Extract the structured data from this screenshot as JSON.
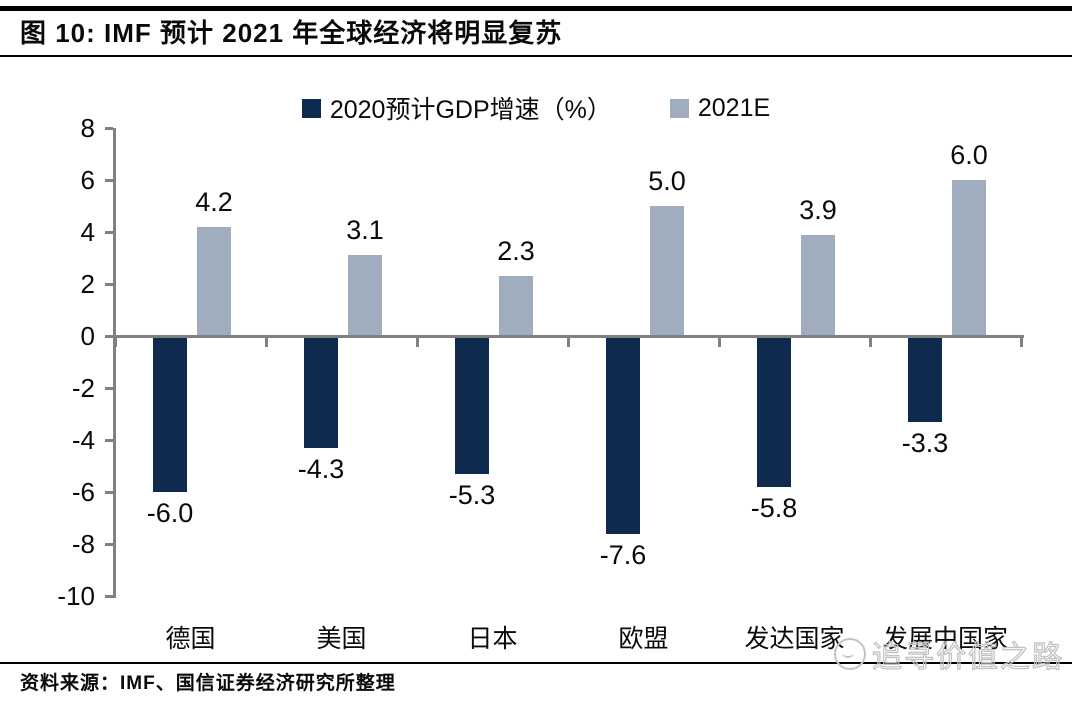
{
  "header": {
    "title": "图 10:  IMF 预计 2021 年全球经济将明显复苏"
  },
  "chart_data": {
    "type": "bar",
    "title": "IMF 预计 2021 年全球经济将明显复苏",
    "categories": [
      "德国",
      "美国",
      "日本",
      "欧盟",
      "发达国家",
      "发展中国家"
    ],
    "series": [
      {
        "name": "2020预计GDP增速（%）",
        "color": "#0e2a4e",
        "values": [
          -6.0,
          -4.3,
          -5.3,
          -7.6,
          -5.8,
          -3.3
        ]
      },
      {
        "name": "2021E",
        "color": "#9fadbe",
        "values": [
          4.2,
          3.1,
          2.3,
          5.0,
          3.9,
          6.0
        ]
      }
    ],
    "y_axis": {
      "min": -10,
      "max": 8,
      "tick_step": 2,
      "ticks": [
        8,
        6,
        4,
        2,
        0,
        -2,
        -4,
        -6,
        -8,
        -10
      ]
    },
    "xlabel": "",
    "ylabel": "",
    "legend_position": "top-center",
    "grid": false,
    "data_labels": true,
    "axis_color": "#808080",
    "label_color": "#0a0a0a"
  },
  "footer": {
    "source": "资料来源：IMF、国信证券经济研究所整理"
  },
  "watermark": {
    "text": "追寻价值之路",
    "icon": "smiley-circle-logo",
    "color": "#c8c8c8"
  }
}
